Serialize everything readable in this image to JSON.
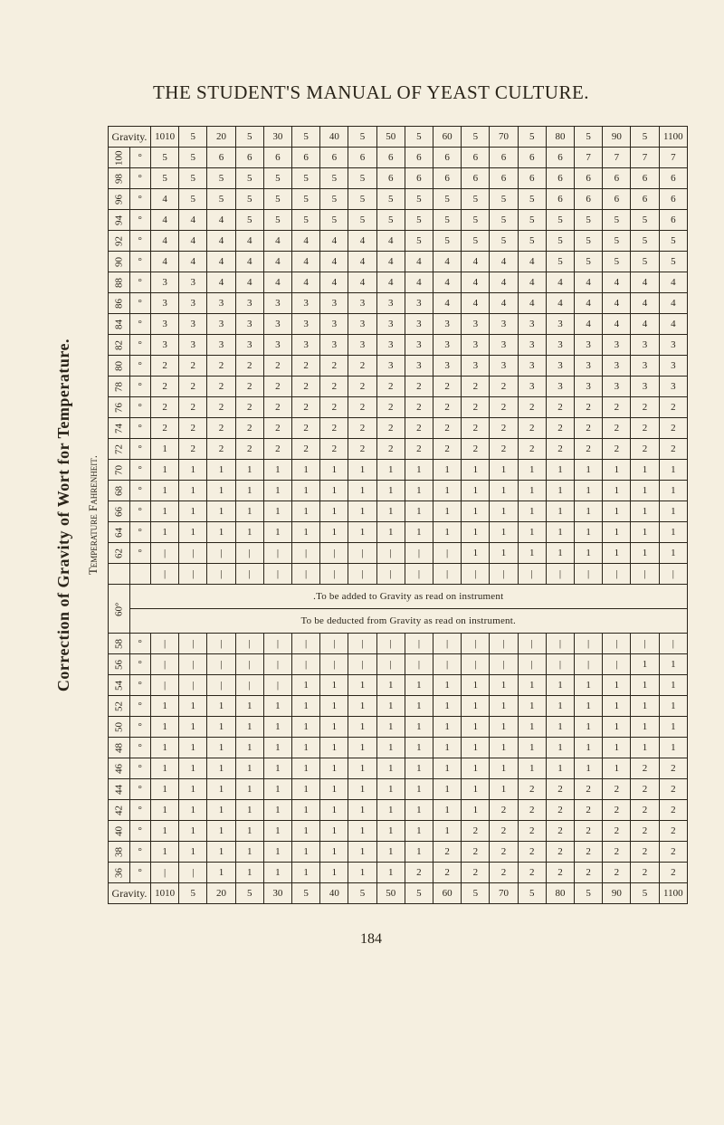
{
  "heading": "THE STUDENT'S MANUAL OF YEAST CULTURE.",
  "sideTitle": "Correction of Gravity of Wort for Temperature.",
  "sideSubtitle": "Temperature Fahrenheit.",
  "gravityLabel": "Gravity.",
  "gravityScale": [
    "1010",
    "5",
    "20",
    "5",
    "30",
    "5",
    "40",
    "5",
    "50",
    "5",
    "60",
    "5",
    "70",
    "5",
    "80",
    "5",
    "90",
    "5",
    "1100"
  ],
  "degSymbol": "°",
  "banner60": "60°",
  "bannerLine1": "To be added to Gravity as read on instrument.",
  "bannerLine2": "To be deducted from Gravity as read on instrument.",
  "rowsAbove": [
    {
      "t": "100",
      "v": [
        "5",
        "5",
        "6",
        "6",
        "6",
        "6",
        "6",
        "6",
        "6",
        "6",
        "6",
        "6",
        "6",
        "6",
        "6",
        "7",
        "7",
        "7",
        "7"
      ]
    },
    {
      "t": "98",
      "v": [
        "5",
        "5",
        "5",
        "5",
        "5",
        "5",
        "5",
        "5",
        "6",
        "6",
        "6",
        "6",
        "6",
        "6",
        "6",
        "6",
        "6",
        "6",
        "6"
      ]
    },
    {
      "t": "96",
      "v": [
        "4",
        "5",
        "5",
        "5",
        "5",
        "5",
        "5",
        "5",
        "5",
        "5",
        "5",
        "5",
        "5",
        "5",
        "6",
        "6",
        "6",
        "6",
        "6"
      ]
    },
    {
      "t": "94",
      "v": [
        "4",
        "4",
        "4",
        "5",
        "5",
        "5",
        "5",
        "5",
        "5",
        "5",
        "5",
        "5",
        "5",
        "5",
        "5",
        "5",
        "5",
        "5",
        "6"
      ]
    },
    {
      "t": "92",
      "v": [
        "4",
        "4",
        "4",
        "4",
        "4",
        "4",
        "4",
        "4",
        "4",
        "5",
        "5",
        "5",
        "5",
        "5",
        "5",
        "5",
        "5",
        "5",
        "5"
      ]
    },
    {
      "t": "90",
      "v": [
        "4",
        "4",
        "4",
        "4",
        "4",
        "4",
        "4",
        "4",
        "4",
        "4",
        "4",
        "4",
        "4",
        "4",
        "5",
        "5",
        "5",
        "5",
        "5"
      ]
    },
    {
      "t": "88",
      "v": [
        "3",
        "3",
        "4",
        "4",
        "4",
        "4",
        "4",
        "4",
        "4",
        "4",
        "4",
        "4",
        "4",
        "4",
        "4",
        "4",
        "4",
        "4",
        "4"
      ]
    },
    {
      "t": "86",
      "v": [
        "3",
        "3",
        "3",
        "3",
        "3",
        "3",
        "3",
        "3",
        "3",
        "3",
        "4",
        "4",
        "4",
        "4",
        "4",
        "4",
        "4",
        "4",
        "4"
      ]
    },
    {
      "t": "84",
      "v": [
        "3",
        "3",
        "3",
        "3",
        "3",
        "3",
        "3",
        "3",
        "3",
        "3",
        "3",
        "3",
        "3",
        "3",
        "3",
        "4",
        "4",
        "4",
        "4"
      ]
    },
    {
      "t": "82",
      "v": [
        "3",
        "3",
        "3",
        "3",
        "3",
        "3",
        "3",
        "3",
        "3",
        "3",
        "3",
        "3",
        "3",
        "3",
        "3",
        "3",
        "3",
        "3",
        "3"
      ]
    },
    {
      "t": "80",
      "v": [
        "2",
        "2",
        "2",
        "2",
        "2",
        "2",
        "2",
        "2",
        "3",
        "3",
        "3",
        "3",
        "3",
        "3",
        "3",
        "3",
        "3",
        "3",
        "3"
      ]
    },
    {
      "t": "78",
      "v": [
        "2",
        "2",
        "2",
        "2",
        "2",
        "2",
        "2",
        "2",
        "2",
        "2",
        "2",
        "2",
        "2",
        "3",
        "3",
        "3",
        "3",
        "3",
        "3"
      ]
    },
    {
      "t": "76",
      "v": [
        "2",
        "2",
        "2",
        "2",
        "2",
        "2",
        "2",
        "2",
        "2",
        "2",
        "2",
        "2",
        "2",
        "2",
        "2",
        "2",
        "2",
        "2",
        "2"
      ]
    },
    {
      "t": "74",
      "v": [
        "2",
        "2",
        "2",
        "2",
        "2",
        "2",
        "2",
        "2",
        "2",
        "2",
        "2",
        "2",
        "2",
        "2",
        "2",
        "2",
        "2",
        "2",
        "2"
      ]
    },
    {
      "t": "72",
      "v": [
        "1",
        "2",
        "2",
        "2",
        "2",
        "2",
        "2",
        "2",
        "2",
        "2",
        "2",
        "2",
        "2",
        "2",
        "2",
        "2",
        "2",
        "2",
        "2"
      ]
    },
    {
      "t": "70",
      "v": [
        "1",
        "1",
        "1",
        "1",
        "1",
        "1",
        "1",
        "1",
        "1",
        "1",
        "1",
        "1",
        "1",
        "1",
        "1",
        "1",
        "1",
        "1",
        "1"
      ]
    },
    {
      "t": "68",
      "v": [
        "1",
        "1",
        "1",
        "1",
        "1",
        "1",
        "1",
        "1",
        "1",
        "1",
        "1",
        "1",
        "1",
        "1",
        "1",
        "1",
        "1",
        "1",
        "1"
      ]
    },
    {
      "t": "66",
      "v": [
        "1",
        "1",
        "1",
        "1",
        "1",
        "1",
        "1",
        "1",
        "1",
        "1",
        "1",
        "1",
        "1",
        "1",
        "1",
        "1",
        "1",
        "1",
        "1"
      ]
    },
    {
      "t": "64",
      "v": [
        "1",
        "1",
        "1",
        "1",
        "1",
        "1",
        "1",
        "1",
        "1",
        "1",
        "1",
        "1",
        "1",
        "1",
        "1",
        "1",
        "1",
        "1",
        "1"
      ]
    },
    {
      "t": "62",
      "v": [
        "|",
        "|",
        "|",
        "|",
        "|",
        "|",
        "|",
        "|",
        "|",
        "|",
        "|",
        "1",
        "1",
        "1",
        "1",
        "1",
        "1",
        "1",
        "1"
      ]
    },
    {
      "t": "",
      "v": [
        "|",
        "|",
        "|",
        "|",
        "|",
        "|",
        "|",
        "|",
        "|",
        "|",
        "|",
        "|",
        "|",
        "|",
        "|",
        "|",
        "|",
        "|",
        "|"
      ]
    }
  ],
  "rowsBelow": [
    {
      "t": "58",
      "v": [
        "|",
        "|",
        "|",
        "|",
        "|",
        "|",
        "|",
        "|",
        "|",
        "|",
        "|",
        "|",
        "|",
        "|",
        "|",
        "|",
        "|",
        "|",
        "|"
      ]
    },
    {
      "t": "56",
      "v": [
        "|",
        "|",
        "|",
        "|",
        "|",
        "|",
        "|",
        "|",
        "|",
        "|",
        "|",
        "|",
        "|",
        "|",
        "|",
        "|",
        "|",
        "1",
        "1"
      ]
    },
    {
      "t": "54",
      "v": [
        "|",
        "|",
        "|",
        "|",
        "|",
        "1",
        "1",
        "1",
        "1",
        "1",
        "1",
        "1",
        "1",
        "1",
        "1",
        "1",
        "1",
        "1",
        "1"
      ]
    },
    {
      "t": "52",
      "v": [
        "1",
        "1",
        "1",
        "1",
        "1",
        "1",
        "1",
        "1",
        "1",
        "1",
        "1",
        "1",
        "1",
        "1",
        "1",
        "1",
        "1",
        "1",
        "1"
      ]
    },
    {
      "t": "50",
      "v": [
        "1",
        "1",
        "1",
        "1",
        "1",
        "1",
        "1",
        "1",
        "1",
        "1",
        "1",
        "1",
        "1",
        "1",
        "1",
        "1",
        "1",
        "1",
        "1"
      ]
    },
    {
      "t": "48",
      "v": [
        "1",
        "1",
        "1",
        "1",
        "1",
        "1",
        "1",
        "1",
        "1",
        "1",
        "1",
        "1",
        "1",
        "1",
        "1",
        "1",
        "1",
        "1",
        "1"
      ]
    },
    {
      "t": "46",
      "v": [
        "1",
        "1",
        "1",
        "1",
        "1",
        "1",
        "1",
        "1",
        "1",
        "1",
        "1",
        "1",
        "1",
        "1",
        "1",
        "1",
        "1",
        "2",
        "2"
      ]
    },
    {
      "t": "44",
      "v": [
        "1",
        "1",
        "1",
        "1",
        "1",
        "1",
        "1",
        "1",
        "1",
        "1",
        "1",
        "1",
        "1",
        "2",
        "2",
        "2",
        "2",
        "2",
        "2"
      ]
    },
    {
      "t": "42",
      "v": [
        "1",
        "1",
        "1",
        "1",
        "1",
        "1",
        "1",
        "1",
        "1",
        "1",
        "1",
        "1",
        "2",
        "2",
        "2",
        "2",
        "2",
        "2",
        "2"
      ]
    },
    {
      "t": "40",
      "v": [
        "1",
        "1",
        "1",
        "1",
        "1",
        "1",
        "1",
        "1",
        "1",
        "1",
        "1",
        "2",
        "2",
        "2",
        "2",
        "2",
        "2",
        "2",
        "2"
      ]
    },
    {
      "t": "38",
      "v": [
        "1",
        "1",
        "1",
        "1",
        "1",
        "1",
        "1",
        "1",
        "1",
        "1",
        "2",
        "2",
        "2",
        "2",
        "2",
        "2",
        "2",
        "2",
        "2"
      ]
    },
    {
      "t": "36",
      "v": [
        "|",
        "|",
        "1",
        "1",
        "1",
        "1",
        "1",
        "1",
        "1",
        "2",
        "2",
        "2",
        "2",
        "2",
        "2",
        "2",
        "2",
        "2",
        "2"
      ]
    }
  ],
  "pageNumber": "184"
}
